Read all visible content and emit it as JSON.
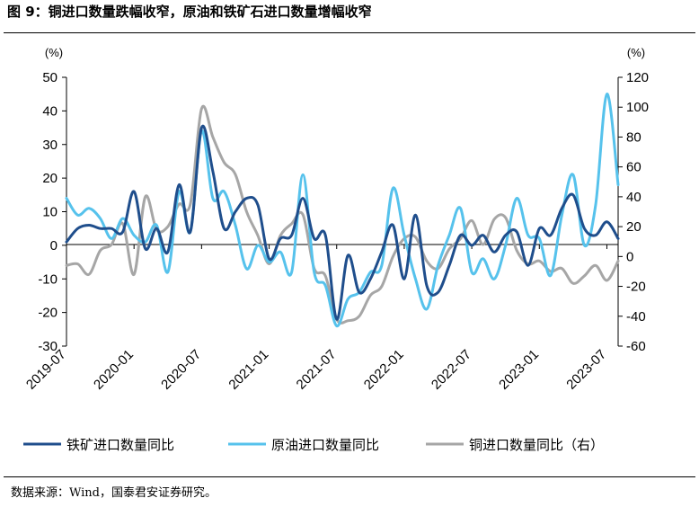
{
  "figure": {
    "title": "图 9：铜进口数量跌幅收窄，原油和铁矿石进口数量增幅收窄",
    "source": "数据来源：Wind，国泰君安证券研究。"
  },
  "chart_data": {
    "type": "line",
    "left_axis": {
      "unit": "(%)",
      "ylim": [
        -30,
        50
      ],
      "ticks": [
        -30,
        -20,
        -10,
        0,
        10,
        20,
        30,
        40,
        50
      ]
    },
    "right_axis": {
      "unit": "(%)",
      "ylim": [
        -60,
        120
      ],
      "ticks": [
        -60,
        -40,
        -20,
        0,
        20,
        40,
        60,
        80,
        100,
        120
      ]
    },
    "x_range": [
      "2019-07",
      "2023-08"
    ],
    "x_ticks": [
      "2019-07",
      "2020-01",
      "2020-07",
      "2021-01",
      "2021-07",
      "2022-01",
      "2022-07",
      "2023-01",
      "2023-07"
    ],
    "grid": false,
    "legend_position": "bottom",
    "series": [
      {
        "name": "铁矿进口数量同比",
        "axis": "left",
        "color": "#1f4e8c",
        "points": [
          [
            "2019-07",
            1
          ],
          [
            "2019-08",
            5
          ],
          [
            "2019-09",
            6
          ],
          [
            "2019-10",
            5
          ],
          [
            "2019-11",
            5
          ],
          [
            "2019-12",
            4
          ],
          [
            "2020-01",
            16
          ],
          [
            "2020-02",
            -1
          ],
          [
            "2020-03",
            5
          ],
          [
            "2020-04",
            -2
          ],
          [
            "2020-05",
            18
          ],
          [
            "2020-06",
            4
          ],
          [
            "2020-07",
            35
          ],
          [
            "2020-08",
            22
          ],
          [
            "2020-09",
            5
          ],
          [
            "2020-10",
            10
          ],
          [
            "2020-11",
            14
          ],
          [
            "2020-12",
            12
          ],
          [
            "2021-01",
            -4
          ],
          [
            "2021-02",
            2
          ],
          [
            "2021-03",
            3
          ],
          [
            "2021-04",
            14
          ],
          [
            "2021-05",
            2
          ],
          [
            "2021-06",
            3
          ],
          [
            "2021-07",
            -22
          ],
          [
            "2021-08",
            -3
          ],
          [
            "2021-09",
            -14
          ],
          [
            "2021-10",
            -10
          ],
          [
            "2021-11",
            -2
          ],
          [
            "2021-12",
            6
          ],
          [
            "2022-01",
            -10
          ],
          [
            "2022-02",
            9
          ],
          [
            "2022-03",
            -12
          ],
          [
            "2022-04",
            -14
          ],
          [
            "2022-05",
            -6
          ],
          [
            "2022-06",
            3
          ],
          [
            "2022-07",
            0
          ],
          [
            "2022-08",
            3
          ],
          [
            "2022-09",
            -2
          ],
          [
            "2022-10",
            3
          ],
          [
            "2022-11",
            4
          ],
          [
            "2022-12",
            -6
          ],
          [
            "2023-01",
            5
          ],
          [
            "2023-02",
            3
          ],
          [
            "2023-03",
            11
          ],
          [
            "2023-04",
            15
          ],
          [
            "2023-05",
            5
          ],
          [
            "2023-06",
            3
          ],
          [
            "2023-07",
            7
          ],
          [
            "2023-08",
            2
          ]
        ]
      },
      {
        "name": "原油进口数量同比",
        "axis": "left",
        "color": "#56c2ec",
        "points": [
          [
            "2019-07",
            14
          ],
          [
            "2019-08",
            9
          ],
          [
            "2019-09",
            11
          ],
          [
            "2019-10",
            8
          ],
          [
            "2019-11",
            2
          ],
          [
            "2019-12",
            8
          ],
          [
            "2020-01",
            3
          ],
          [
            "2020-02",
            1
          ],
          [
            "2020-03",
            6
          ],
          [
            "2020-04",
            -8
          ],
          [
            "2020-05",
            16
          ],
          [
            "2020-06",
            4
          ],
          [
            "2020-07",
            34
          ],
          [
            "2020-08",
            14
          ],
          [
            "2020-09",
            16
          ],
          [
            "2020-10",
            6
          ],
          [
            "2020-11",
            -7
          ],
          [
            "2020-12",
            0
          ],
          [
            "2021-01",
            -5
          ],
          [
            "2021-02",
            -2
          ],
          [
            "2021-03",
            -8
          ],
          [
            "2021-04",
            21
          ],
          [
            "2021-05",
            -8
          ],
          [
            "2021-06",
            -12
          ],
          [
            "2021-07",
            -24
          ],
          [
            "2021-08",
            -16
          ],
          [
            "2021-09",
            -14
          ],
          [
            "2021-10",
            -8
          ],
          [
            "2021-11",
            -6
          ],
          [
            "2021-12",
            17
          ],
          [
            "2022-01",
            3
          ],
          [
            "2022-02",
            -10
          ],
          [
            "2022-03",
            -19
          ],
          [
            "2022-04",
            -6
          ],
          [
            "2022-05",
            3
          ],
          [
            "2022-06",
            11
          ],
          [
            "2022-07",
            -8
          ],
          [
            "2022-08",
            -4
          ],
          [
            "2022-09",
            -10
          ],
          [
            "2022-10",
            0
          ],
          [
            "2022-11",
            14
          ],
          [
            "2022-12",
            3
          ],
          [
            "2023-01",
            2
          ],
          [
            "2023-02",
            -9
          ],
          [
            "2023-03",
            9
          ],
          [
            "2023-04",
            21
          ],
          [
            "2023-05",
            0
          ],
          [
            "2023-06",
            12
          ],
          [
            "2023-07",
            45
          ],
          [
            "2023-08",
            18
          ]
        ]
      },
      {
        "name": "铜进口数量同比（右）",
        "axis": "right",
        "color": "#a6a6a6",
        "points": [
          [
            "2019-07",
            -6
          ],
          [
            "2019-08",
            -5
          ],
          [
            "2019-09",
            -12
          ],
          [
            "2019-10",
            4
          ],
          [
            "2019-11",
            8
          ],
          [
            "2019-12",
            22
          ],
          [
            "2020-01",
            -12
          ],
          [
            "2020-02",
            40
          ],
          [
            "2020-03",
            18
          ],
          [
            "2020-04",
            20
          ],
          [
            "2020-05",
            35
          ],
          [
            "2020-06",
            35
          ],
          [
            "2020-07",
            99
          ],
          [
            "2020-08",
            80
          ],
          [
            "2020-09",
            63
          ],
          [
            "2020-10",
            55
          ],
          [
            "2020-11",
            30
          ],
          [
            "2020-12",
            14
          ],
          [
            "2021-01",
            -5
          ],
          [
            "2021-02",
            14
          ],
          [
            "2021-03",
            22
          ],
          [
            "2021-04",
            28
          ],
          [
            "2021-05",
            -8
          ],
          [
            "2021-06",
            -13
          ],
          [
            "2021-07",
            -42
          ],
          [
            "2021-08",
            -43
          ],
          [
            "2021-09",
            -40
          ],
          [
            "2021-10",
            -26
          ],
          [
            "2021-11",
            -20
          ],
          [
            "2021-12",
            0
          ],
          [
            "2022-01",
            12
          ],
          [
            "2022-02",
            13
          ],
          [
            "2022-03",
            -3
          ],
          [
            "2022-04",
            -8
          ],
          [
            "2022-05",
            5
          ],
          [
            "2022-06",
            12
          ],
          [
            "2022-07",
            24
          ],
          [
            "2022-08",
            8
          ],
          [
            "2022-09",
            25
          ],
          [
            "2022-10",
            26
          ],
          [
            "2022-11",
            4
          ],
          [
            "2022-12",
            -5
          ],
          [
            "2023-01",
            -3
          ],
          [
            "2023-02",
            -10
          ],
          [
            "2023-03",
            -8
          ],
          [
            "2023-04",
            -18
          ],
          [
            "2023-05",
            -13
          ],
          [
            "2023-06",
            -6
          ],
          [
            "2023-07",
            -16
          ],
          [
            "2023-08",
            -3
          ]
        ]
      }
    ]
  }
}
